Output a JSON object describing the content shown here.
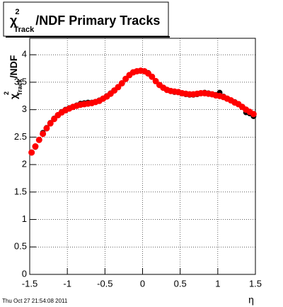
{
  "chart_data": {
    "type": "scatter",
    "title": {
      "symbol": "χ",
      "sup": "2",
      "sub": "Track",
      "rest": "/NDF  Primary Tracks"
    },
    "y_label": {
      "symbol": "χ",
      "sup": "2",
      "sub": "Track",
      "rest": "/NDF"
    },
    "x_label": "η",
    "timestamp": "Thu Oct 27 21:54:08 2011",
    "xlim": [
      -1.5,
      1.5
    ],
    "ylim": [
      0,
      4.3
    ],
    "xticks": [
      -1.5,
      -1,
      -0.5,
      0,
      0.5,
      1,
      1.5
    ],
    "yticks": [
      0,
      0.5,
      1,
      1.5,
      2,
      2.5,
      3,
      3.5,
      4
    ],
    "grid": true,
    "x": [
      -1.475,
      -1.425,
      -1.375,
      -1.325,
      -1.275,
      -1.225,
      -1.175,
      -1.125,
      -1.075,
      -1.025,
      -0.975,
      -0.925,
      -0.875,
      -0.825,
      -0.775,
      -0.725,
      -0.675,
      -0.625,
      -0.575,
      -0.525,
      -0.475,
      -0.425,
      -0.375,
      -0.325,
      -0.275,
      -0.225,
      -0.175,
      -0.125,
      -0.075,
      -0.025,
      0.025,
      0.075,
      0.125,
      0.175,
      0.225,
      0.275,
      0.325,
      0.375,
      0.425,
      0.475,
      0.525,
      0.575,
      0.625,
      0.675,
      0.725,
      0.775,
      0.825,
      0.875,
      0.925,
      0.975,
      1.025,
      1.075,
      1.125,
      1.175,
      1.225,
      1.275,
      1.325,
      1.375,
      1.425,
      1.475
    ],
    "series": [
      {
        "name": "black",
        "color": "#000000",
        "values": [
          2.22,
          2.32,
          2.45,
          2.58,
          2.67,
          2.76,
          2.84,
          2.9,
          2.96,
          3.0,
          3.03,
          3.05,
          3.08,
          3.11,
          3.12,
          3.13,
          3.13,
          3.14,
          3.17,
          3.2,
          3.25,
          3.3,
          3.35,
          3.41,
          3.48,
          3.56,
          3.63,
          3.68,
          3.7,
          3.71,
          3.7,
          3.67,
          3.6,
          3.52,
          3.45,
          3.4,
          3.36,
          3.34,
          3.32,
          3.32,
          3.3,
          3.28,
          3.27,
          3.27,
          3.28,
          3.3,
          3.31,
          3.3,
          3.28,
          3.27,
          3.31,
          3.24,
          3.2,
          3.17,
          3.14,
          3.1,
          3.05,
          2.95,
          2.93,
          2.88
        ]
      },
      {
        "name": "red",
        "color": "#ff0000",
        "values": [
          2.22,
          2.33,
          2.45,
          2.56,
          2.66,
          2.75,
          2.83,
          2.9,
          2.95,
          2.99,
          3.02,
          3.05,
          3.07,
          3.09,
          3.1,
          3.11,
          3.12,
          3.14,
          3.16,
          3.2,
          3.24,
          3.29,
          3.35,
          3.41,
          3.48,
          3.56,
          3.63,
          3.68,
          3.7,
          3.71,
          3.7,
          3.66,
          3.6,
          3.52,
          3.45,
          3.4,
          3.36,
          3.34,
          3.33,
          3.32,
          3.3,
          3.29,
          3.28,
          3.28,
          3.29,
          3.3,
          3.3,
          3.29,
          3.28,
          3.26,
          3.25,
          3.23,
          3.2,
          3.17,
          3.13,
          3.1,
          3.05,
          3.0,
          2.96,
          2.92
        ]
      }
    ]
  }
}
